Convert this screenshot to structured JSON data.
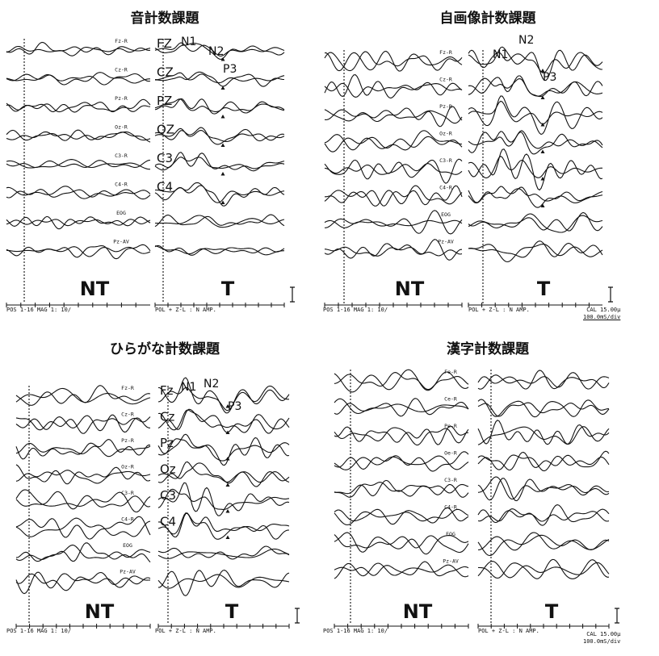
{
  "channel_labels": [
    "Fz-R",
    "Cz-R",
    "Pz-R",
    "Oz-R",
    "C3-R",
    "C4-R",
    "EOG",
    "Pz-AV"
  ],
  "condition_labels": {
    "nt": "NT",
    "t": "T"
  },
  "footer_left": "POS  1-16   MAG 1: 10/",
  "footer_right": "POL +    Z-L : N   AMP.",
  "calibration": {
    "cal": "CAL    15.00μ",
    "time": "100.0mS/div"
  },
  "chart_data": [
    {
      "type": "line",
      "title": "音計数課題",
      "channels": [
        "Fz-R",
        "Cz-R",
        "Pz-R",
        "Oz-R",
        "C3-R",
        "C4-R",
        "EOG",
        "Pz-AV"
      ],
      "conditions": [
        "NT",
        "T"
      ],
      "t_labels": [
        "FZ",
        "CZ",
        "PZ",
        "OZ",
        "C3",
        "C4"
      ],
      "components": [
        "N1",
        "N2",
        "P3"
      ],
      "noise": 0.6,
      "p3_markers": true
    },
    {
      "type": "line",
      "title": "自画像計数課題",
      "channels": [
        "Fz-R",
        "Cz-R",
        "Pz-R",
        "Oz-R",
        "C3-R",
        "C4-R",
        "EOG",
        "Pz-AV"
      ],
      "conditions": [
        "NT",
        "T"
      ],
      "t_labels": [],
      "components": [
        "N1",
        "N2",
        "P3"
      ],
      "noise": 1.1,
      "p3_markers": true
    },
    {
      "type": "line",
      "title": "ひらがな計数課題",
      "channels": [
        "Fz-R",
        "Cz-R",
        "Pz-R",
        "Oz-R",
        "C3-R",
        "C4-R",
        "EOG",
        "Pz-AV"
      ],
      "conditions": [
        "NT",
        "T"
      ],
      "t_labels": [
        "Fz",
        "Cz",
        "Pz",
        "Oz",
        "C3",
        "C4"
      ],
      "components": [
        "N1",
        "N2",
        "P3"
      ],
      "noise": 1.2,
      "p3_markers": true
    },
    {
      "type": "line",
      "title": "漢字計数課題",
      "channels": [
        "Fe-R",
        "Ce-R",
        "Pe-R",
        "Oe-R",
        "C3-R",
        "C4-R",
        "EOG",
        "Pz-AV"
      ],
      "conditions": [
        "NT",
        "T"
      ],
      "t_labels": [],
      "components": [],
      "noise": 1.1,
      "p3_markers": false
    }
  ]
}
